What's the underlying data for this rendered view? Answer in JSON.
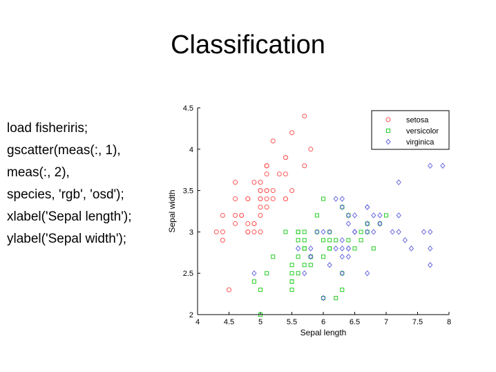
{
  "slide": {
    "title": "Classification",
    "code_lines": [
      "load fisheriris;",
      "gscatter(meas(:, 1),",
      "meas(:, 2),",
      "species, 'rgb', 'osd');",
      "xlabel('Sepal length');",
      "ylabel('Sepal width');"
    ]
  },
  "colors": {
    "setosa": "#ff5555",
    "versicolor": "#22cc22",
    "virginica": "#6666dd"
  },
  "chart_data": {
    "type": "scatter",
    "title": "",
    "xlabel": "Sepal length",
    "ylabel": "Sepal width",
    "xlim": [
      4,
      8
    ],
    "ylim": [
      2,
      4.5
    ],
    "xticks": [
      "4",
      "4.5",
      "5",
      "5.5",
      "6",
      "6.5",
      "7",
      "7.5",
      "8"
    ],
    "yticks": [
      "2",
      "2.5",
      "3",
      "3.5",
      "4",
      "4.5"
    ],
    "legend": {
      "position": "top-right",
      "entries": [
        "setosa",
        "versicolor",
        "virginica"
      ]
    },
    "series": [
      {
        "name": "setosa",
        "marker": "circle",
        "x": [
          5.1,
          4.9,
          4.7,
          4.6,
          5.0,
          5.4,
          4.6,
          5.0,
          4.4,
          4.9,
          5.4,
          4.8,
          4.8,
          4.3,
          5.8,
          5.7,
          5.4,
          5.1,
          5.7,
          5.1,
          5.4,
          5.1,
          4.6,
          5.1,
          4.8,
          5.0,
          5.0,
          5.2,
          5.2,
          4.7,
          4.8,
          5.4,
          5.2,
          5.5,
          4.9,
          5.0,
          5.5,
          4.9,
          4.4,
          5.1,
          5.0,
          4.5,
          4.4,
          5.0,
          5.1,
          4.8,
          5.1,
          4.6,
          5.3,
          5.0
        ],
        "y": [
          3.5,
          3.0,
          3.2,
          3.1,
          3.6,
          3.9,
          3.4,
          3.4,
          2.9,
          3.1,
          3.7,
          3.4,
          3.0,
          3.0,
          4.0,
          4.4,
          3.9,
          3.5,
          3.8,
          3.8,
          3.4,
          3.7,
          3.6,
          3.3,
          3.4,
          3.0,
          3.4,
          3.5,
          3.4,
          3.2,
          3.1,
          3.4,
          4.1,
          4.2,
          3.1,
          3.2,
          3.5,
          3.6,
          3.0,
          3.4,
          3.5,
          2.3,
          3.2,
          3.5,
          3.8,
          3.0,
          3.8,
          3.2,
          3.7,
          3.3
        ]
      },
      {
        "name": "versicolor",
        "marker": "square",
        "x": [
          7.0,
          6.4,
          6.9,
          5.5,
          6.5,
          5.7,
          6.3,
          4.9,
          6.6,
          5.2,
          5.0,
          5.9,
          6.0,
          6.1,
          5.6,
          6.7,
          5.6,
          5.8,
          6.2,
          5.6,
          5.9,
          6.1,
          6.3,
          6.1,
          6.4,
          6.6,
          6.8,
          6.7,
          6.0,
          5.7,
          5.5,
          5.5,
          5.8,
          6.0,
          5.4,
          6.0,
          6.7,
          6.3,
          5.6,
          5.5,
          5.5,
          6.1,
          5.8,
          5.0,
          5.6,
          5.7,
          5.7,
          6.2,
          5.1,
          5.7
        ],
        "y": [
          3.2,
          3.2,
          3.1,
          2.3,
          2.8,
          2.8,
          3.3,
          2.4,
          2.9,
          2.7,
          2.0,
          3.0,
          2.2,
          2.9,
          2.9,
          3.1,
          3.0,
          2.7,
          2.2,
          2.5,
          3.2,
          2.8,
          2.5,
          2.8,
          2.9,
          3.0,
          2.8,
          3.0,
          2.9,
          2.6,
          2.4,
          2.4,
          2.7,
          2.7,
          3.0,
          3.4,
          3.1,
          2.3,
          3.0,
          2.5,
          2.6,
          3.0,
          2.6,
          2.3,
          2.7,
          3.0,
          2.9,
          2.9,
          2.5,
          2.8
        ]
      },
      {
        "name": "virginica",
        "marker": "diamond",
        "x": [
          6.3,
          5.8,
          7.1,
          6.3,
          6.5,
          7.6,
          4.9,
          7.3,
          6.7,
          7.2,
          6.5,
          6.4,
          6.8,
          5.7,
          5.8,
          6.4,
          6.5,
          7.7,
          7.7,
          6.0,
          6.9,
          5.6,
          7.7,
          6.3,
          6.7,
          7.2,
          6.2,
          6.1,
          6.4,
          7.2,
          7.4,
          7.9,
          6.4,
          6.3,
          6.1,
          7.7,
          6.3,
          6.4,
          6.0,
          6.9,
          6.7,
          6.9,
          5.8,
          6.8,
          6.7,
          6.7,
          6.3,
          6.5,
          6.2,
          5.9
        ],
        "y": [
          3.3,
          2.7,
          3.0,
          2.9,
          3.0,
          3.0,
          2.5,
          2.9,
          2.5,
          3.6,
          3.2,
          2.7,
          3.0,
          2.5,
          2.8,
          3.2,
          3.0,
          3.8,
          2.6,
          2.2,
          3.2,
          2.8,
          2.8,
          2.7,
          3.3,
          3.2,
          2.8,
          3.0,
          2.8,
          3.0,
          2.8,
          3.8,
          2.8,
          2.8,
          2.6,
          3.0,
          3.4,
          3.1,
          3.0,
          3.1,
          3.1,
          3.1,
          2.7,
          3.2,
          3.3,
          3.0,
          2.5,
          3.0,
          3.4,
          3.0
        ]
      }
    ]
  }
}
